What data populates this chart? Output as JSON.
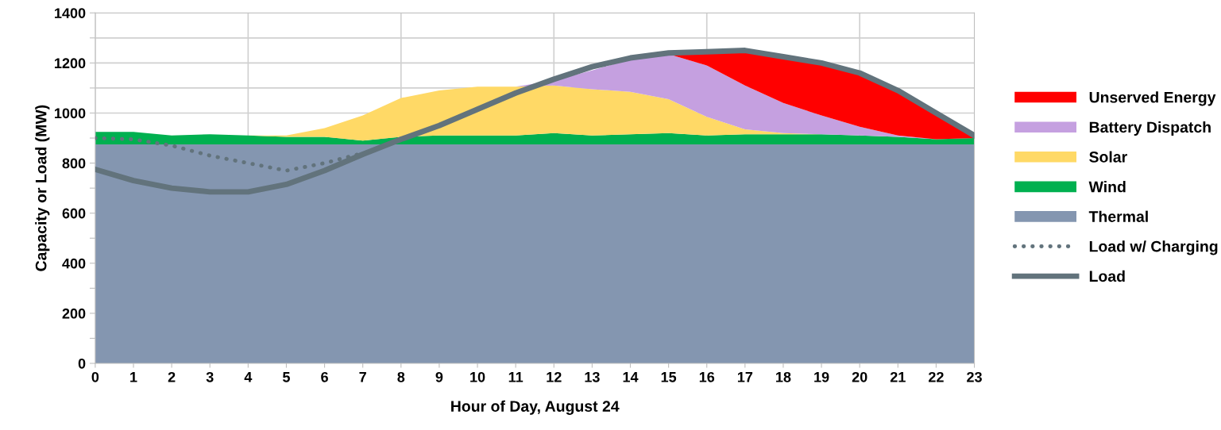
{
  "chart_data": {
    "type": "area",
    "stacked": true,
    "xlabel": "Hour of Day, August 24",
    "ylabel": "Capacity or Load (MW)",
    "x": [
      0,
      1,
      2,
      3,
      4,
      5,
      6,
      7,
      8,
      9,
      10,
      11,
      12,
      13,
      14,
      15,
      16,
      17,
      18,
      19,
      20,
      21,
      22,
      23
    ],
    "xlim": [
      0,
      23
    ],
    "xticks": [
      0,
      1,
      2,
      3,
      4,
      5,
      6,
      7,
      8,
      9,
      10,
      11,
      12,
      13,
      14,
      15,
      16,
      17,
      18,
      19,
      20,
      21,
      22,
      23
    ],
    "ylim": [
      0,
      1400
    ],
    "yticks": [
      0,
      {
        "value": 100,
        "label": null
      },
      200,
      {
        "value": 300,
        "label": null
      },
      400,
      {
        "value": 500,
        "label": null
      },
      600,
      {
        "value": 700,
        "label": null
      },
      800,
      {
        "value": 900,
        "label": null
      },
      1000,
      {
        "value": 1100,
        "label": null
      },
      1200,
      {
        "value": 1300,
        "label": null
      },
      1400
    ],
    "grid": true,
    "legend": "right",
    "series": [
      {
        "name": "Thermal",
        "color": "#8496b0",
        "values": [
          875,
          875,
          875,
          875,
          875,
          875,
          875,
          875,
          875,
          875,
          875,
          875,
          875,
          875,
          875,
          875,
          875,
          875,
          875,
          875,
          875,
          875,
          875,
          875
        ]
      },
      {
        "name": "Wind",
        "color": "#00b050",
        "values": [
          50,
          50,
          35,
          40,
          35,
          30,
          30,
          15,
          30,
          35,
          35,
          35,
          45,
          35,
          40,
          45,
          35,
          40,
          40,
          40,
          35,
          30,
          20,
          25
        ]
      },
      {
        "name": "Solar",
        "color": "#ffd966",
        "values": [
          0,
          0,
          0,
          0,
          0,
          5,
          35,
          100,
          155,
          180,
          195,
          195,
          190,
          185,
          170,
          135,
          75,
          20,
          5,
          0,
          0,
          0,
          0,
          0
        ]
      },
      {
        "name": "Battery Dispatch",
        "color": "#c5a0e0",
        "values": [
          0,
          0,
          0,
          0,
          0,
          0,
          0,
          0,
          0,
          0,
          0,
          0,
          20,
          75,
          130,
          180,
          205,
          175,
          120,
          75,
          35,
          5,
          0,
          0
        ]
      },
      {
        "name": "Unserved Energy",
        "color": "#ff0000",
        "values": [
          0,
          0,
          0,
          0,
          0,
          0,
          0,
          0,
          0,
          0,
          0,
          0,
          0,
          0,
          0,
          5,
          55,
          140,
          185,
          210,
          215,
          175,
          105,
          15
        ]
      },
      {
        "name": "Load w/ Charging",
        "type": "line",
        "line_style": "dotted",
        "color": "#62737c",
        "x": [
          0,
          1,
          2,
          3,
          4,
          5,
          6,
          7
        ],
        "values": [
          900,
          895,
          870,
          830,
          800,
          770,
          800,
          840
        ]
      },
      {
        "name": "Load",
        "type": "line",
        "line_style": "solid",
        "color": "#62737c",
        "values": [
          775,
          730,
          700,
          685,
          685,
          715,
          770,
          835,
          895,
          950,
          1015,
          1080,
          1135,
          1185,
          1220,
          1240,
          1245,
          1250,
          1225,
          1200,
          1160,
          1090,
          1000,
          910
        ]
      }
    ]
  }
}
